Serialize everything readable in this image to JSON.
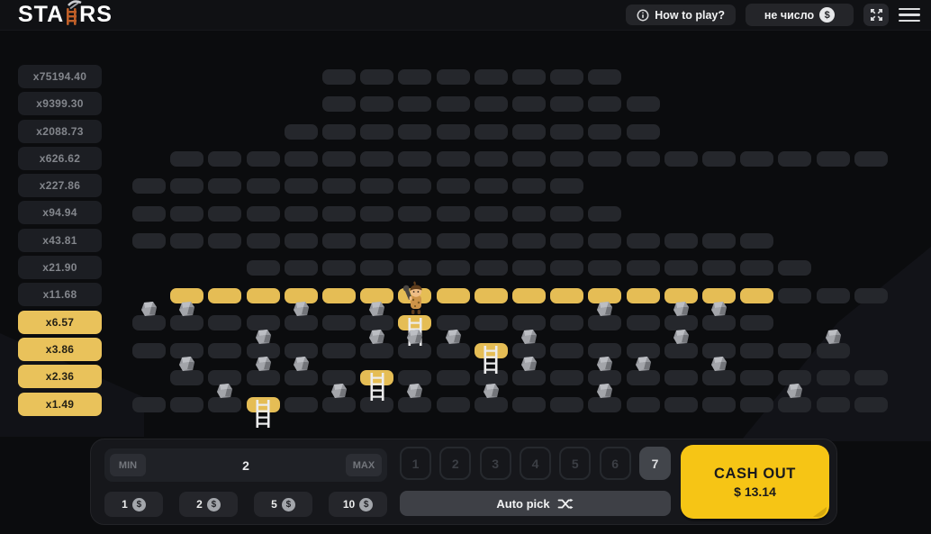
{
  "header": {
    "logo": {
      "part1": "STA",
      "part2": "RS"
    },
    "how_to_play": "How to play?",
    "balance": "не число",
    "dollar_glyph": "$"
  },
  "multipliers": [
    {
      "label": "x75194.40",
      "active": false
    },
    {
      "label": "x9399.30",
      "active": false
    },
    {
      "label": "x2088.73",
      "active": false
    },
    {
      "label": "x626.62",
      "active": false
    },
    {
      "label": "x227.86",
      "active": false
    },
    {
      "label": "x94.94",
      "active": false
    },
    {
      "label": "x43.81",
      "active": false
    },
    {
      "label": "x21.90",
      "active": false
    },
    {
      "label": "x11.68",
      "active": false
    },
    {
      "label": "x6.57",
      "active": true
    },
    {
      "label": "x3.86",
      "active": true
    },
    {
      "label": "x2.36",
      "active": true
    },
    {
      "label": "x1.49",
      "active": true
    }
  ],
  "board": {
    "rows": [
      {
        "r": 1,
        "from": 5,
        "to": 12
      },
      {
        "r": 2,
        "from": 5,
        "to": 13
      },
      {
        "r": 3,
        "from": 4,
        "to": 13
      },
      {
        "r": 4,
        "from": 1,
        "to": 19
      },
      {
        "r": 5,
        "from": 0,
        "to": 11
      },
      {
        "r": 6,
        "from": 0,
        "to": 12
      },
      {
        "r": 7,
        "from": 0,
        "to": 16
      },
      {
        "r": 8,
        "from": 3,
        "to": 17
      },
      {
        "r": 9,
        "from": 1,
        "to": 19,
        "yellow": [
          1,
          16
        ]
      },
      {
        "r": 10,
        "from": 0,
        "to": 16,
        "picked": 7
      },
      {
        "r": 11,
        "from": 0,
        "to": 18,
        "picked": 9
      },
      {
        "r": 12,
        "from": 1,
        "to": 19,
        "picked": 6
      },
      {
        "r": 13,
        "from": 0,
        "to": 19,
        "picked": 3
      }
    ],
    "rocks": [
      {
        "r": 10,
        "c": 0
      },
      {
        "r": 10,
        "c": 1
      },
      {
        "r": 10,
        "c": 4
      },
      {
        "r": 10,
        "c": 6
      },
      {
        "r": 10,
        "c": 12
      },
      {
        "r": 10,
        "c": 14
      },
      {
        "r": 10,
        "c": 15
      },
      {
        "r": 11,
        "c": 3
      },
      {
        "r": 11,
        "c": 6
      },
      {
        "r": 11,
        "c": 7
      },
      {
        "r": 11,
        "c": 8
      },
      {
        "r": 11,
        "c": 10
      },
      {
        "r": 11,
        "c": 14
      },
      {
        "r": 11,
        "c": 18
      },
      {
        "r": 12,
        "c": 1
      },
      {
        "r": 12,
        "c": 3
      },
      {
        "r": 12,
        "c": 4
      },
      {
        "r": 12,
        "c": 10
      },
      {
        "r": 12,
        "c": 12
      },
      {
        "r": 12,
        "c": 13
      },
      {
        "r": 12,
        "c": 15
      },
      {
        "r": 13,
        "c": 2
      },
      {
        "r": 13,
        "c": 5
      },
      {
        "r": 13,
        "c": 7
      },
      {
        "r": 13,
        "c": 9
      },
      {
        "r": 13,
        "c": 12
      },
      {
        "r": 13,
        "c": 17
      }
    ],
    "ladders": [
      {
        "r": 10,
        "c": 7
      },
      {
        "r": 11,
        "c": 9
      },
      {
        "r": 12,
        "c": 6
      },
      {
        "r": 13,
        "c": 3
      }
    ],
    "character": {
      "r": 10,
      "c": 7
    }
  },
  "controls": {
    "min_label": "MIN",
    "bet_value": "2",
    "max_label": "MAX",
    "steps": [
      "1",
      "2",
      "3",
      "4",
      "5",
      "6",
      "7"
    ],
    "selected_step": "7",
    "bet_amounts": [
      "1",
      "2",
      "5",
      "10"
    ],
    "auto_pick": "Auto pick",
    "cash_out": {
      "label": "CASH OUT",
      "amount": "$ 13.14"
    }
  },
  "colors": {
    "gold_tile": "#e5bd55",
    "sidebar_gold": "#e9c25b",
    "cash_out_yellow": "#f6c515",
    "tile_dark": "#25272c",
    "rock_gray": "#95979c"
  }
}
